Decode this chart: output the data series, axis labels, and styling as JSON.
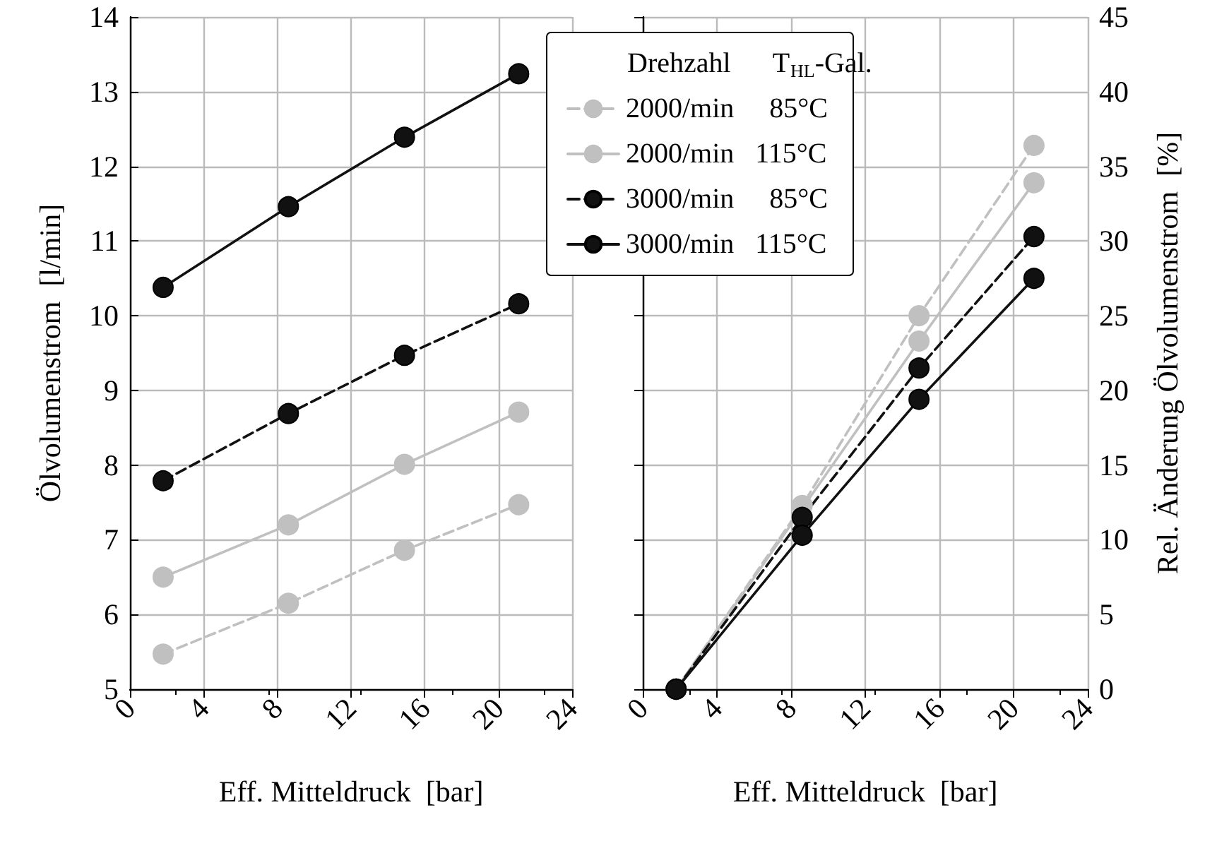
{
  "chart_data": [
    {
      "type": "line",
      "xlabel": "Eff. Mitteldruck  [bar]",
      "ylabel": "Ölvolumenstrom  [l/min]",
      "x": [
        1.8,
        8.6,
        14.9,
        21.1
      ],
      "series": [
        {
          "color": "#c0c0c0",
          "line_style": "dashed",
          "values": [
            5.47,
            6.15,
            6.86,
            7.47
          ]
        },
        {
          "color": "#c0c0c0",
          "line_style": "solid",
          "values": [
            6.5,
            7.2,
            8.01,
            8.71
          ]
        },
        {
          "color": "#111111",
          "line_style": "dashed",
          "values": [
            7.79,
            8.69,
            9.47,
            10.16
          ]
        },
        {
          "color": "#111111",
          "line_style": "solid",
          "values": [
            10.38,
            11.46,
            12.39,
            13.24
          ]
        }
      ],
      "xlim": [
        0,
        24
      ],
      "xticks": [
        0,
        4,
        8,
        12,
        16,
        20,
        24
      ],
      "ylim": [
        5,
        14
      ],
      "yticks": [
        5,
        6,
        7,
        8,
        9,
        10,
        11,
        12,
        13,
        14
      ],
      "grid": true,
      "marker": "circle",
      "legend": false
    },
    {
      "type": "line",
      "xlabel": "Eff. Mitteldruck  [bar]",
      "ylabel": "Rel. Änderung Ölvolumenstrom  [%]",
      "legend_title": "Drehzahl      T$_{HL}$-Gal.",
      "x": [
        1.8,
        8.6,
        14.9,
        21.1
      ],
      "series": [
        {
          "name": "2000/min     85°C",
          "color": "#c0c0c0",
          "line_style": "dashed",
          "values": [
            0,
            12.3,
            25.0,
            36.4
          ]
        },
        {
          "name": "2000/min   115°C",
          "color": "#c0c0c0",
          "line_style": "solid",
          "values": [
            0,
            null,
            23.3,
            33.9
          ]
        },
        {
          "name": "3000/min     85°C",
          "color": "#111111",
          "line_style": "dashed",
          "values": [
            0,
            11.5,
            21.5,
            30.3
          ]
        },
        {
          "name": "3000/min   115°C",
          "color": "#111111",
          "line_style": "solid",
          "values": [
            0,
            10.3,
            19.4,
            27.5
          ]
        }
      ],
      "xlim": [
        0,
        24
      ],
      "xticks": [
        0,
        4,
        8,
        12,
        16,
        20,
        24
      ],
      "ylim": [
        0,
        45
      ],
      "yticks": [
        0,
        5,
        10,
        15,
        20,
        25,
        30,
        35,
        40,
        45
      ],
      "grid": true,
      "marker": "circle",
      "legend": "top left"
    }
  ]
}
